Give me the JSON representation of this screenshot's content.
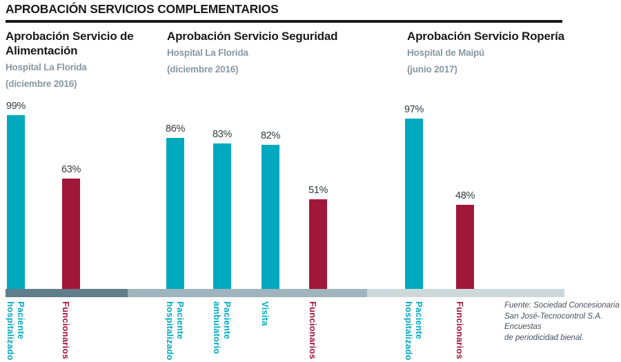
{
  "page": {
    "title": "APROBACIÓN SERVICIOS COMPLEMENTARIOS"
  },
  "colors": {
    "teal": "#00a9be",
    "crimson": "#a1173a",
    "title_text": "#1a1a1a",
    "subtitle_text": "#8798a3",
    "value_label_text": "#33383d",
    "baseline_segment_1": "#5f7d8a",
    "baseline_segment_2": "#9fb4bc",
    "baseline_segment_3": "#cdd8db",
    "source_text": "#454f5b"
  },
  "source": {
    "lines": [
      "Fuente: Sociedad Concesionaria",
      "San José-Tecnocontrol S.A. Encuestas",
      "de periodicidad bienal."
    ]
  },
  "chart_data": [
    {
      "type": "bar",
      "title": "Aprobación Servicio de Alimentación",
      "subtitle": "Hospital La Florida",
      "period": "(diciembre 2016)",
      "unit": "%",
      "ylim": [
        0,
        100
      ],
      "grid": false,
      "categories": [
        "Paciente hospitalizado",
        "Funcionarios"
      ],
      "values": [
        99,
        63
      ],
      "value_labels": [
        "99%",
        "63%"
      ],
      "bar_colors": [
        "teal",
        "crimson"
      ]
    },
    {
      "type": "bar",
      "title": "Aprobación Servicio Seguridad",
      "subtitle": "Hospital La Florida",
      "period": "(diciembre 2016)",
      "unit": "%",
      "ylim": [
        0,
        100
      ],
      "grid": false,
      "categories": [
        "Paciente hospitalizado",
        "Paciente ambulatorio",
        "Visita",
        "Funcionarios"
      ],
      "values": [
        86,
        83,
        82,
        51
      ],
      "value_labels": [
        "86%",
        "83%",
        "82%",
        "51%"
      ],
      "bar_colors": [
        "teal",
        "teal",
        "teal",
        "crimson"
      ]
    },
    {
      "type": "bar",
      "title": "Aprobación Servicio Ropería",
      "subtitle": "Hospital de Maipú",
      "period": "(junio 2017)",
      "unit": "%",
      "ylim": [
        0,
        100
      ],
      "grid": false,
      "categories": [
        "Paciente hospitalizado",
        "Funcionarios"
      ],
      "values": [
        97,
        48
      ],
      "value_labels": [
        "97%",
        "48%"
      ],
      "bar_colors": [
        "teal",
        "crimson"
      ]
    }
  ]
}
